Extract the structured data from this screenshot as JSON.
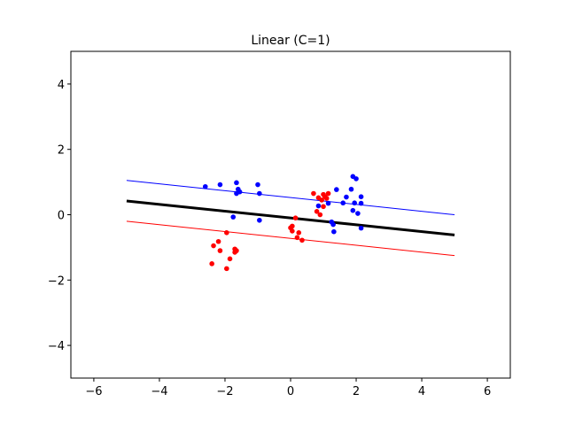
{
  "chart_data": {
    "type": "scatter",
    "title": "Linear (C=1)",
    "xlabel": "",
    "ylabel": "",
    "xlim": [
      -6.7,
      6.7
    ],
    "ylim": [
      -5,
      5
    ],
    "xticks": [
      -6,
      -4,
      -2,
      0,
      2,
      4,
      6
    ],
    "yticks": [
      -4,
      -2,
      0,
      2,
      4
    ],
    "xtick_labels": [
      "−6",
      "−4",
      "−2",
      "0",
      "2",
      "4",
      "6"
    ],
    "ytick_labels": [
      "−4",
      "−2",
      "0",
      "2",
      "4"
    ],
    "grid": false,
    "series": [
      {
        "color": "#0000ff",
        "points": [
          [
            -2.6,
            0.86
          ],
          [
            -2.15,
            0.92
          ],
          [
            -1.65,
            0.98
          ],
          [
            -1.6,
            0.78
          ],
          [
            -1.55,
            0.7
          ],
          [
            -1.65,
            0.65
          ],
          [
            -1.75,
            -0.07
          ],
          [
            -1.0,
            0.92
          ],
          [
            -0.95,
            0.65
          ],
          [
            -0.95,
            -0.17
          ],
          [
            0.85,
            0.27
          ],
          [
            1.15,
            0.35
          ],
          [
            1.25,
            -0.22
          ],
          [
            1.3,
            -0.3
          ],
          [
            1.32,
            -0.52
          ],
          [
            1.4,
            0.77
          ],
          [
            1.6,
            0.36
          ],
          [
            1.7,
            0.54
          ],
          [
            1.85,
            0.78
          ],
          [
            1.9,
            1.17
          ],
          [
            2.0,
            1.1
          ],
          [
            1.95,
            0.36
          ],
          [
            1.9,
            0.13
          ],
          [
            2.05,
            0.04
          ],
          [
            2.15,
            0.35
          ],
          [
            2.15,
            0.55
          ],
          [
            2.15,
            -0.41
          ]
        ]
      },
      {
        "color": "#ff0000",
        "points": [
          [
            0.7,
            0.65
          ],
          [
            0.8,
            0.1
          ],
          [
            0.9,
            0.0
          ],
          [
            0.85,
            0.52
          ],
          [
            0.95,
            0.45
          ],
          [
            1.0,
            0.62
          ],
          [
            1.0,
            0.25
          ],
          [
            1.05,
            0.55
          ],
          [
            1.1,
            0.5
          ],
          [
            1.15,
            0.65
          ],
          [
            0.15,
            -0.1
          ],
          [
            0.05,
            -0.35
          ],
          [
            0.0,
            -0.4
          ],
          [
            0.05,
            -0.5
          ],
          [
            0.25,
            -0.55
          ],
          [
            0.2,
            -0.7
          ],
          [
            0.35,
            -0.78
          ],
          [
            -2.4,
            -1.5
          ],
          [
            -2.35,
            -0.95
          ],
          [
            -2.2,
            -0.82
          ],
          [
            -2.15,
            -1.1
          ],
          [
            -1.95,
            -0.55
          ],
          [
            -1.85,
            -1.35
          ],
          [
            -1.95,
            -1.65
          ],
          [
            -1.7,
            -1.05
          ],
          [
            -1.65,
            -1.1
          ],
          [
            -1.7,
            -1.15
          ]
        ]
      }
    ],
    "lines": [
      {
        "role": "decision-boundary",
        "color": "#000000",
        "x": [
          -5,
          5
        ],
        "y": [
          0.42,
          -0.62
        ]
      },
      {
        "role": "margin-blue",
        "color": "#0000ff",
        "x": [
          -5,
          5
        ],
        "y": [
          1.05,
          0.0
        ]
      },
      {
        "role": "margin-red",
        "color": "#ff0000",
        "x": [
          -5,
          5
        ],
        "y": [
          -0.2,
          -1.25
        ]
      }
    ]
  }
}
